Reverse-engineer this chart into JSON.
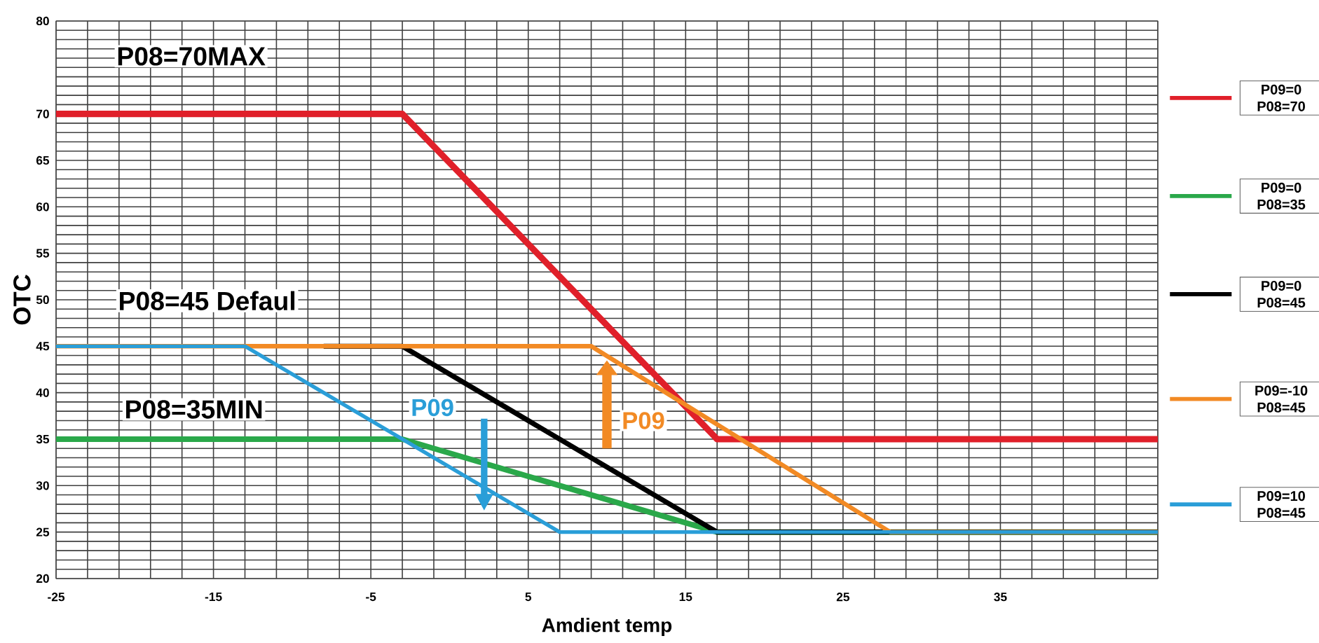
{
  "chart_data": {
    "type": "line",
    "xlabel": "Amdient temp",
    "ylabel": "OTC",
    "xlim": [
      -25,
      45
    ],
    "ylim": [
      20,
      80
    ],
    "xticks": [
      -25,
      {
        "value": -23,
        "label": null
      },
      {
        "value": -21,
        "label": null
      },
      {
        "value": -19,
        "label": null
      },
      {
        "value": -17,
        "label": null
      },
      -15,
      {
        "value": -13,
        "label": null
      },
      {
        "value": -11,
        "label": null
      },
      {
        "value": -9,
        "label": null
      },
      {
        "value": -7,
        "label": null
      },
      -5,
      {
        "value": -3,
        "label": null
      },
      {
        "value": -1,
        "label": null
      },
      {
        "value": 1,
        "label": null
      },
      {
        "value": 3,
        "label": null
      },
      5,
      {
        "value": 7,
        "label": null
      },
      {
        "value": 9,
        "label": null
      },
      {
        "value": 11,
        "label": null
      },
      {
        "value": 13,
        "label": null
      },
      15,
      {
        "value": 17,
        "label": null
      },
      {
        "value": 19,
        "label": null
      },
      {
        "value": 21,
        "label": null
      },
      {
        "value": 23,
        "label": null
      },
      25,
      {
        "value": 27,
        "label": null
      },
      {
        "value": 29,
        "label": null
      },
      {
        "value": 31,
        "label": null
      },
      {
        "value": 33,
        "label": null
      },
      35,
      {
        "value": 37,
        "label": null
      },
      {
        "value": 39,
        "label": null
      },
      {
        "value": 41,
        "label": null
      },
      {
        "value": 43,
        "label": null
      },
      {
        "value": 45,
        "label": null
      }
    ],
    "yticks": [
      20,
      {
        "value": 21,
        "label": null
      },
      {
        "value": 22,
        "label": null
      },
      {
        "value": 23,
        "label": null
      },
      {
        "value": 24,
        "label": null
      },
      25,
      {
        "value": 26,
        "label": null
      },
      {
        "value": 27,
        "label": null
      },
      {
        "value": 28,
        "label": null
      },
      {
        "value": 29,
        "label": null
      },
      30,
      {
        "value": 31,
        "label": null
      },
      {
        "value": 32,
        "label": null
      },
      {
        "value": 33,
        "label": null
      },
      {
        "value": 34,
        "label": null
      },
      35,
      {
        "value": 36,
        "label": null
      },
      {
        "value": 37,
        "label": null
      },
      {
        "value": 38,
        "label": null
      },
      {
        "value": 39,
        "label": null
      },
      40,
      {
        "value": 41,
        "label": null
      },
      {
        "value": 42,
        "label": null
      },
      {
        "value": 43,
        "label": null
      },
      {
        "value": 44,
        "label": null
      },
      45,
      {
        "value": 46,
        "label": null
      },
      {
        "value": 47,
        "label": null
      },
      {
        "value": 48,
        "label": null
      },
      {
        "value": 49,
        "label": null
      },
      50,
      {
        "value": 51,
        "label": null
      },
      {
        "value": 52,
        "label": null
      },
      {
        "value": 53,
        "label": null
      },
      {
        "value": 54,
        "label": null
      },
      55,
      {
        "value": 56,
        "label": null
      },
      {
        "value": 57,
        "label": null
      },
      {
        "value": 58,
        "label": null
      },
      {
        "value": 59,
        "label": null
      },
      60,
      {
        "value": 61,
        "label": null
      },
      {
        "value": 62,
        "label": null
      },
      {
        "value": 63,
        "label": null
      },
      {
        "value": 64,
        "label": null
      },
      65,
      {
        "value": 66,
        "label": null
      },
      {
        "value": 67,
        "label": null
      },
      {
        "value": 68,
        "label": null
      },
      {
        "value": 69,
        "label": null
      },
      70,
      {
        "value": 71,
        "label": null
      },
      {
        "value": 72,
        "label": null
      },
      {
        "value": 73,
        "label": null
      },
      {
        "value": 74,
        "label": null
      },
      {
        "value": 75,
        "label": null
      },
      {
        "value": 76,
        "label": null
      },
      {
        "value": 77,
        "label": null
      },
      {
        "value": 78,
        "label": null
      },
      {
        "value": 79,
        "label": null
      },
      80
    ],
    "grid": true,
    "legend": "right",
    "series": [
      {
        "name": "P09=0 P08=70",
        "color": "#e0202a",
        "x": [
          -25,
          -3,
          17,
          45
        ],
        "values": [
          70,
          70,
          35,
          35
        ]
      },
      {
        "name": "P09=0 P08=35",
        "color": "#2aa84a",
        "x": [
          -25,
          -3,
          17,
          45
        ],
        "values": [
          35,
          35,
          25,
          25
        ]
      },
      {
        "name": "P09=0 P08=45",
        "color": "#000000",
        "x": [
          -8,
          -3,
          17,
          45
        ],
        "values": [
          45,
          45,
          25,
          25
        ]
      },
      {
        "name": "P09=-10 P08=45",
        "color": "#f28a24",
        "x": [
          -25,
          9,
          28,
          45
        ],
        "values": [
          45,
          45,
          25,
          25
        ]
      },
      {
        "name": "P09=10 P08=45",
        "color": "#2a9ed8",
        "x": [
          -25,
          -13,
          7,
          45
        ],
        "values": [
          45,
          45,
          25,
          25
        ]
      }
    ],
    "annotations": [
      "P08=70MAX",
      "P08=45 Defaul",
      "P08=35MIN",
      "P09",
      "P09"
    ]
  }
}
